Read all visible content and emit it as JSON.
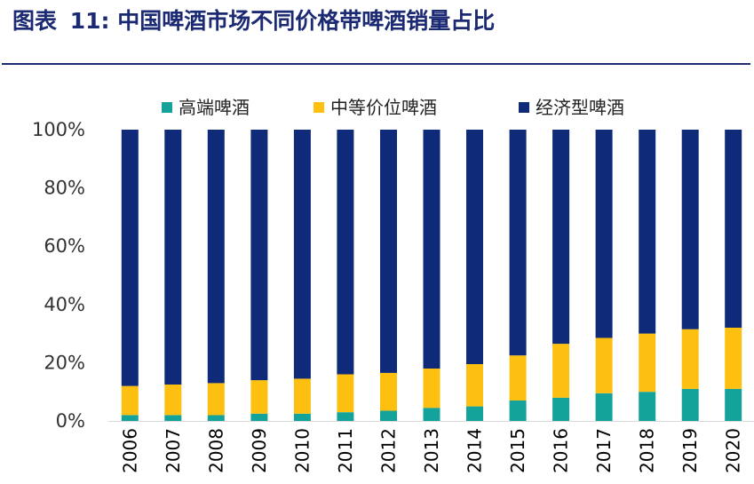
{
  "figure": {
    "label": "图表",
    "number": "11",
    "separator": ":",
    "caption": "中国啤酒市场不同价格带啤酒销量占比"
  },
  "colors": {
    "title": "#1b2a72",
    "high_end": "#14a39a",
    "mid_high": "#fdc010",
    "economy": "#0e2a78",
    "axis": "#d9d9d9"
  },
  "chart_data": {
    "type": "bar",
    "stacked": true,
    "normalized_percent": true,
    "categories": [
      "2006",
      "2007",
      "2008",
      "2009",
      "2010",
      "2011",
      "2012",
      "2013",
      "2014",
      "2015",
      "2016",
      "2017",
      "2018",
      "2019",
      "2020"
    ],
    "series": [
      {
        "name": "高端啤酒",
        "values": [
          2,
          2,
          2,
          2.5,
          2.5,
          3,
          3.5,
          4.5,
          5,
          7,
          8,
          9.5,
          10,
          11,
          11
        ]
      },
      {
        "name": "中等价位啤酒",
        "values": [
          10,
          10.5,
          11,
          11.5,
          12,
          13,
          13,
          13.5,
          14.5,
          15.5,
          18.5,
          19,
          20,
          20.5,
          21
        ]
      },
      {
        "name": "经济型啤酒",
        "values": [
          88,
          87.5,
          87,
          86,
          85.5,
          84,
          83.5,
          82,
          80.5,
          77.5,
          73.5,
          71.5,
          70,
          68.5,
          68
        ]
      }
    ],
    "yticks": [
      "0%",
      "20%",
      "40%",
      "60%",
      "80%",
      "100%"
    ],
    "ylim": [
      0,
      100
    ],
    "legend_position": "top",
    "grid": false
  }
}
